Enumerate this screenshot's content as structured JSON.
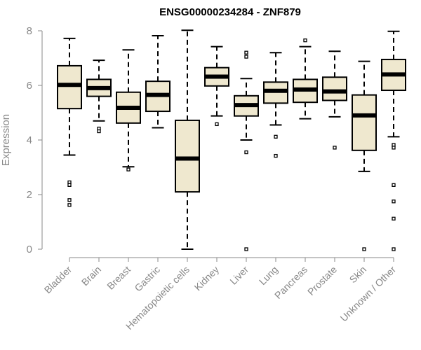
{
  "chart_data": {
    "type": "boxplot",
    "title": "ENSG00000234284 - ZNF879",
    "xlabel": "",
    "ylabel": "Expression",
    "ylim": [
      0,
      8
    ],
    "yticks": [
      0,
      2,
      4,
      6,
      8
    ],
    "grid": false,
    "colors": {
      "box_fill": "#efe8cf",
      "stroke": "#000000",
      "axis": "#888888"
    },
    "categories": [
      "Bladder",
      "Brain",
      "Breast",
      "Gastric",
      "Hematopoietic cells",
      "Kidney",
      "Liver",
      "Lung",
      "Pancreas",
      "Prostate",
      "Skin",
      "Unknown / Other"
    ],
    "boxes": [
      {
        "whisker_low": 3.45,
        "q1": 5.15,
        "median": 6.02,
        "q3": 6.72,
        "whisker_high": 7.72,
        "outliers": [
          2.45,
          2.35,
          1.8,
          1.62
        ]
      },
      {
        "whisker_low": 4.7,
        "q1": 5.6,
        "median": 5.9,
        "q3": 6.22,
        "whisker_high": 6.92,
        "outliers": [
          4.42,
          4.32
        ]
      },
      {
        "whisker_low": 3.02,
        "q1": 4.62,
        "median": 5.18,
        "q3": 5.75,
        "whisker_high": 7.3,
        "outliers": [
          2.92
        ]
      },
      {
        "whisker_low": 4.45,
        "q1": 5.05,
        "median": 5.65,
        "q3": 6.15,
        "whisker_high": 7.82,
        "outliers": []
      },
      {
        "whisker_low": 0.0,
        "q1": 2.1,
        "median": 3.32,
        "q3": 4.72,
        "whisker_high": 8.02,
        "outliers": []
      },
      {
        "whisker_low": 4.88,
        "q1": 5.98,
        "median": 6.32,
        "q3": 6.65,
        "whisker_high": 7.42,
        "outliers": [
          4.58
        ]
      },
      {
        "whisker_low": 4.0,
        "q1": 4.88,
        "median": 5.28,
        "q3": 5.62,
        "whisker_high": 6.25,
        "outliers": [
          7.2,
          7.05,
          3.55,
          0.0
        ]
      },
      {
        "whisker_low": 4.55,
        "q1": 5.35,
        "median": 5.8,
        "q3": 6.12,
        "whisker_high": 7.2,
        "outliers": [
          4.12,
          3.42
        ]
      },
      {
        "whisker_low": 4.78,
        "q1": 5.38,
        "median": 5.85,
        "q3": 6.22,
        "whisker_high": 7.42,
        "outliers": [
          7.65
        ]
      },
      {
        "whisker_low": 4.85,
        "q1": 5.45,
        "median": 5.78,
        "q3": 6.3,
        "whisker_high": 7.25,
        "outliers": [
          3.72
        ]
      },
      {
        "whisker_low": 2.85,
        "q1": 3.62,
        "median": 4.9,
        "q3": 5.65,
        "whisker_high": 6.88,
        "outliers": [
          0.0
        ]
      },
      {
        "whisker_low": 4.12,
        "q1": 5.82,
        "median": 6.4,
        "q3": 6.95,
        "whisker_high": 7.98,
        "outliers": [
          3.82,
          3.72,
          2.35,
          1.75,
          1.12,
          0.0
        ]
      }
    ]
  }
}
